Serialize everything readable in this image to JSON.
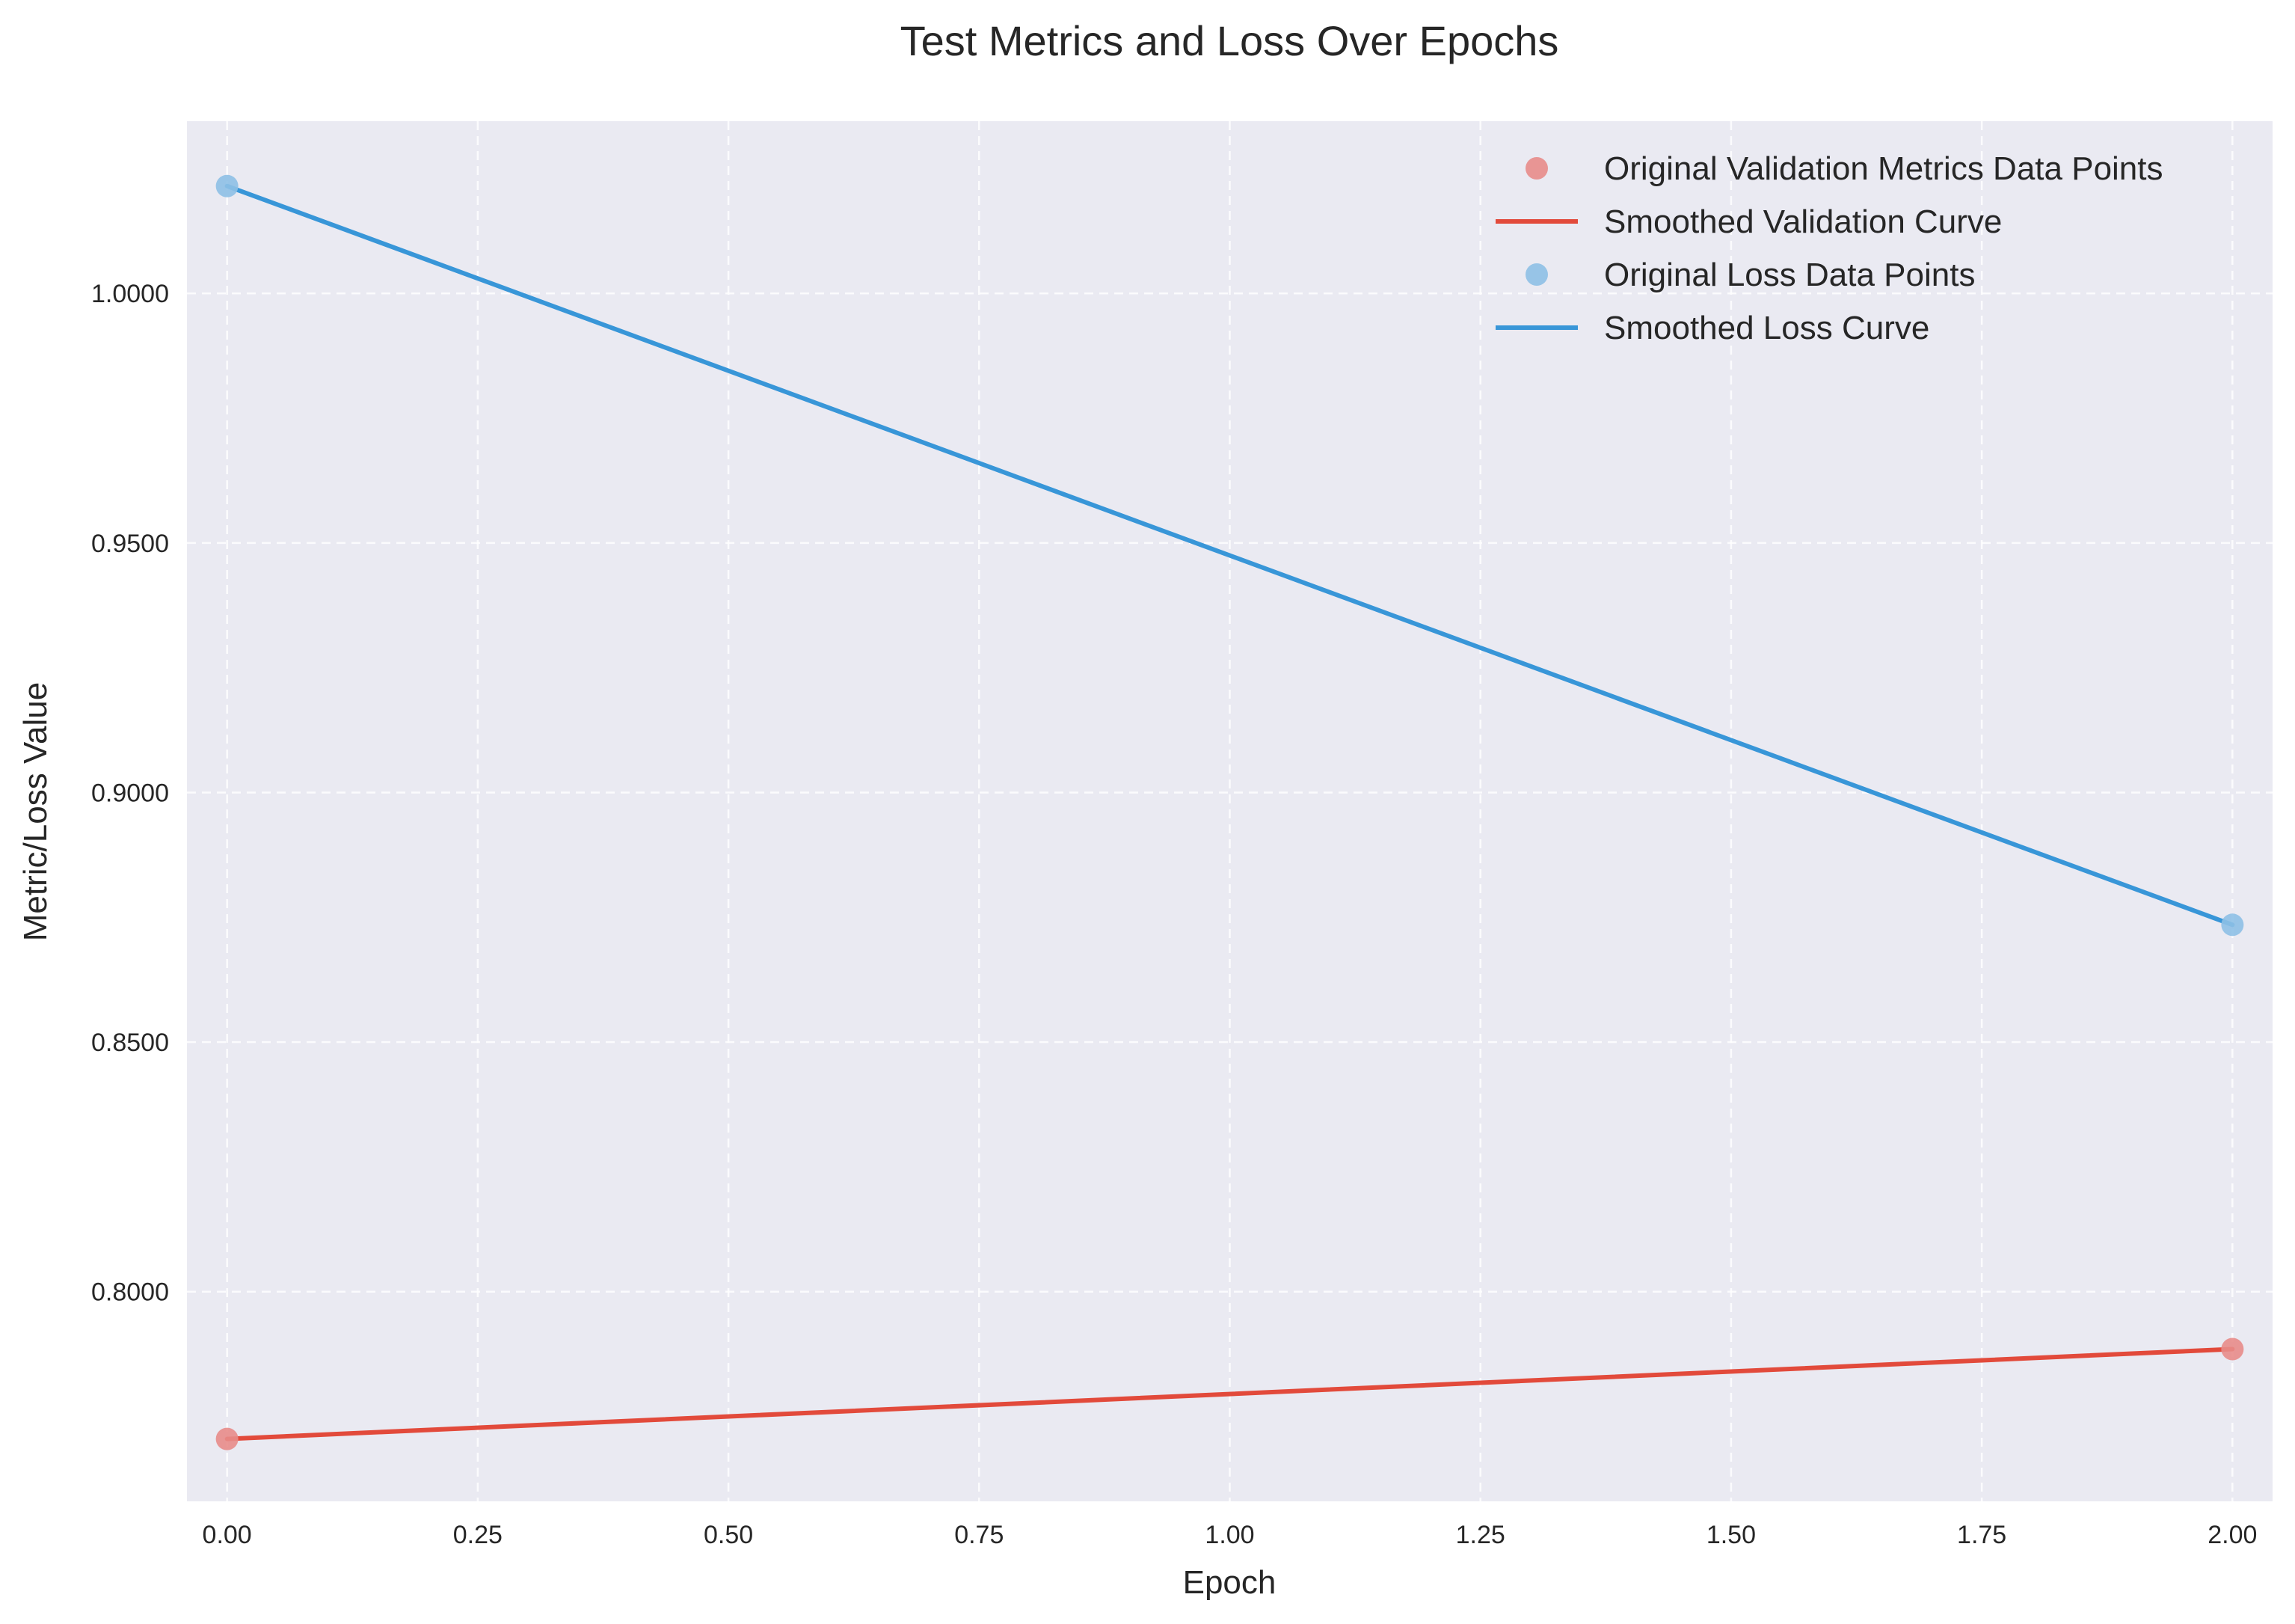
{
  "chart_data": {
    "type": "line",
    "title": "Test Metrics and Loss Over Epochs",
    "xlabel": "Epoch",
    "ylabel": "Metric/Loss Value",
    "xlim": [
      -0.04,
      2.04
    ],
    "ylim": [
      0.758,
      1.0345
    ],
    "x_ticks": [
      0.0,
      0.25,
      0.5,
      0.75,
      1.0,
      1.25,
      1.5,
      1.75,
      2.0
    ],
    "x_tick_labels": [
      "0.00",
      "0.25",
      "0.50",
      "0.75",
      "1.00",
      "1.25",
      "1.50",
      "1.75",
      "2.00"
    ],
    "y_ticks": [
      0.8,
      0.85,
      0.9,
      0.95,
      1.0
    ],
    "y_tick_labels": [
      "0.8000",
      "0.8500",
      "0.9000",
      "0.9500",
      "1.0000"
    ],
    "grid": true,
    "legend_position": "top-right",
    "background_color": "#eaeaf2",
    "series": [
      {
        "name": "Original Validation Metrics Data Points",
        "kind": "scatter",
        "color": "#e88c8a",
        "x": [
          0,
          2
        ],
        "y": [
          0.7705,
          0.7885
        ]
      },
      {
        "name": "Smoothed Validation Curve",
        "kind": "line",
        "color": "#e24a3b",
        "x": [
          0,
          2
        ],
        "y": [
          0.7705,
          0.7885
        ]
      },
      {
        "name": "Original Loss Data Points",
        "kind": "scatter",
        "color": "#8ec0e6",
        "x": [
          0,
          2
        ],
        "y": [
          1.0215,
          0.8735
        ]
      },
      {
        "name": "Smoothed Loss Curve",
        "kind": "line",
        "color": "#3896d8",
        "x": [
          0,
          2
        ],
        "y": [
          1.0215,
          0.8735
        ]
      }
    ]
  }
}
